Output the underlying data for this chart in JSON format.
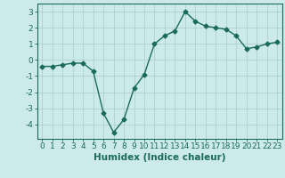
{
  "x": [
    0,
    1,
    2,
    3,
    4,
    5,
    6,
    7,
    8,
    9,
    10,
    11,
    12,
    13,
    14,
    15,
    16,
    17,
    18,
    19,
    20,
    21,
    22,
    23
  ],
  "y": [
    -0.4,
    -0.4,
    -0.3,
    -0.2,
    -0.2,
    -0.7,
    -3.3,
    -4.5,
    -3.7,
    -1.75,
    -0.9,
    1.0,
    1.5,
    1.8,
    3.0,
    2.4,
    2.1,
    2.0,
    1.9,
    1.5,
    0.7,
    0.8,
    1.0,
    1.1
  ],
  "xlabel": "Humidex (Indice chaleur)",
  "ylabel": "",
  "xlim": [
    -0.5,
    23.5
  ],
  "ylim": [
    -4.9,
    3.5
  ],
  "yticks": [
    -4,
    -3,
    -2,
    -1,
    0,
    1,
    2,
    3
  ],
  "xticks": [
    0,
    1,
    2,
    3,
    4,
    5,
    6,
    7,
    8,
    9,
    10,
    11,
    12,
    13,
    14,
    15,
    16,
    17,
    18,
    19,
    20,
    21,
    22,
    23
  ],
  "line_color": "#1a6b5a",
  "marker": "D",
  "marker_size": 2.5,
  "bg_color": "#cceaea",
  "grid_color": "#add0d0",
  "tick_label_fontsize": 6.5,
  "xlabel_fontsize": 7.5,
  "line_width": 1.0
}
